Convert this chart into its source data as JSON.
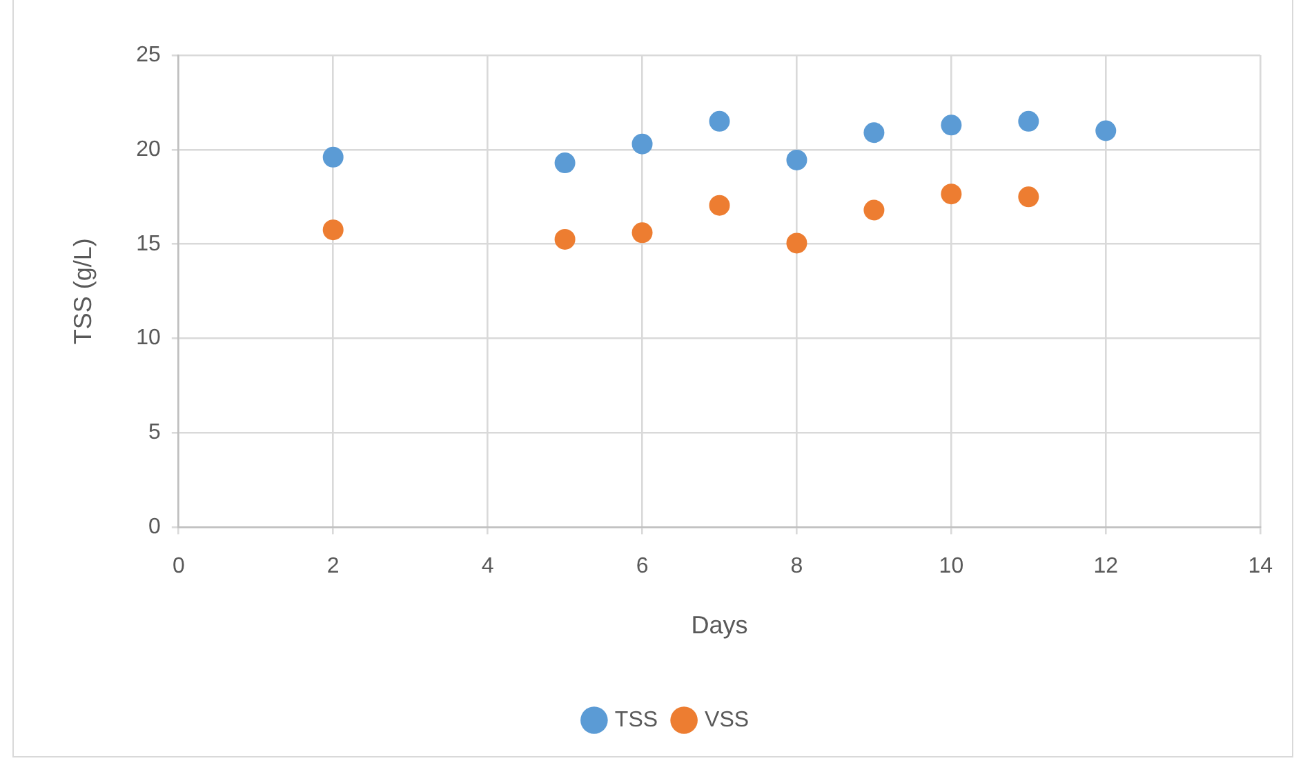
{
  "chart_data": {
    "type": "scatter",
    "xlabel": "Days",
    "ylabel": "TSS (g/L)",
    "x": [
      2,
      5,
      6,
      7,
      8,
      9,
      10,
      11,
      12
    ],
    "series": [
      {
        "name": "TSS",
        "color": "#5b9bd5",
        "values": [
          19.6,
          19.3,
          20.3,
          21.5,
          19.45,
          20.9,
          21.3,
          21.5,
          21.0
        ]
      },
      {
        "name": "VSS",
        "color": "#ed7d31",
        "values": [
          15.75,
          15.25,
          15.6,
          17.05,
          15.05,
          16.8,
          17.65,
          17.5,
          null
        ]
      }
    ],
    "xlim": [
      0,
      14
    ],
    "xticks": [
      0,
      2,
      4,
      6,
      8,
      10,
      12,
      14
    ],
    "ylim": [
      0,
      25
    ],
    "yticks": [
      0,
      5,
      10,
      15,
      20,
      25
    ],
    "grid": true,
    "legend": "bottom",
    "marker": "circle"
  }
}
